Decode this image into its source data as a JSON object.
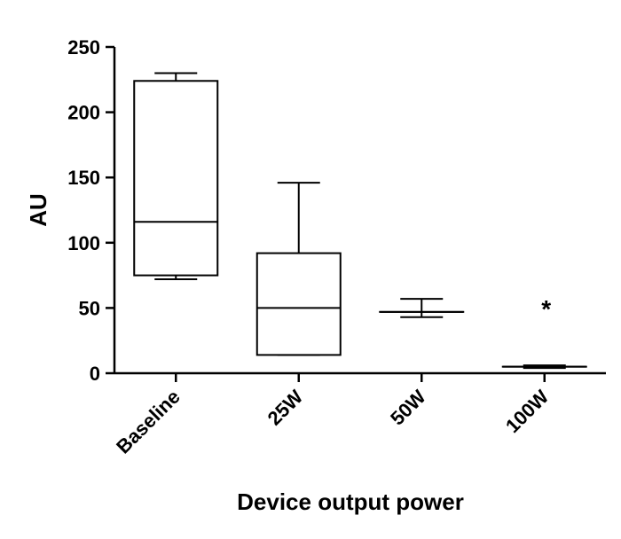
{
  "chart_data": {
    "type": "box",
    "categories": [
      "Baseline",
      "25W",
      "50W",
      "100W"
    ],
    "boxes": [
      {
        "category": "Baseline",
        "min": 72,
        "q1": 75,
        "median": 116,
        "q3": 224,
        "max": 230
      },
      {
        "category": "25W",
        "min": 14,
        "q1": 14,
        "median": 50,
        "q3": 92,
        "max": 146
      },
      {
        "category": "50W",
        "min": 43,
        "q1": 47,
        "median": 47,
        "q3": 47,
        "max": 57
      },
      {
        "category": "100W",
        "min": 4,
        "q1": 5,
        "median": 5,
        "q3": 5,
        "max": 6
      }
    ],
    "ylabel": "AU",
    "xlabel": "Device output power",
    "ylim": [
      0,
      250
    ],
    "yticks": [
      0,
      50,
      100,
      150,
      200,
      250
    ],
    "annotations": [
      {
        "category": "100W",
        "text": "*"
      }
    ],
    "grid": false
  }
}
